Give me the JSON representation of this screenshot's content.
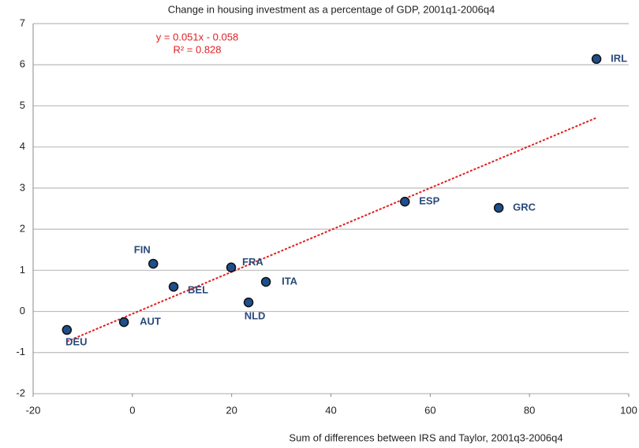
{
  "chart_data": {
    "type": "scatter",
    "title": "Change in housing investment as a percentage of GDP,  2001q1-2006q4",
    "x_label": "Sum of differences between IRS and Taylor, 2001q3-2006q4",
    "x": [
      93.5,
      54.9,
      73.8,
      4.2,
      19.9,
      26.9,
      8.3,
      23.4,
      -1.7,
      -13.2
    ],
    "values": [
      6.14,
      2.67,
      2.52,
      1.16,
      1.07,
      0.72,
      0.6,
      0.22,
      -0.26,
      -0.45
    ],
    "labels": [
      "IRL",
      "ESP",
      "GRC",
      "FIN",
      "FRA",
      "ITA",
      "BEL",
      "NLD",
      "AUT",
      "DEU"
    ],
    "color": "#1f4e8c",
    "xlim": [
      -20,
      100
    ],
    "xticks": [
      -20,
      0,
      20,
      40,
      60,
      80,
      100
    ],
    "ylim": [
      -2,
      7
    ],
    "yticks": [
      -2,
      -1,
      0,
      1,
      2,
      3,
      4,
      5,
      6,
      7
    ],
    "grid": true,
    "trendline": {
      "slope": 0.051,
      "intercept": -0.058,
      "color": "#e02020",
      "equation": "y = 0.051x - 0.058",
      "r2_label": "R² = 0.828"
    }
  }
}
